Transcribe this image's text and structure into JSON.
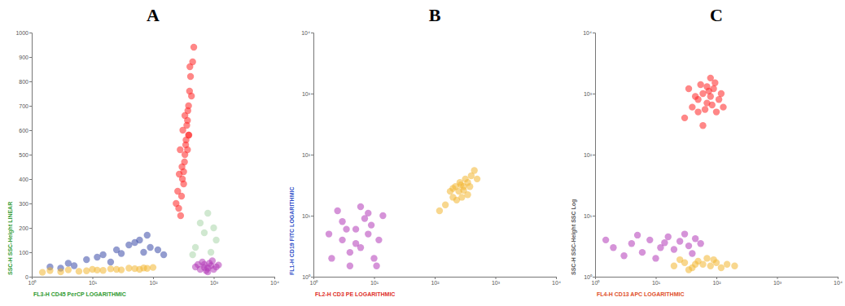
{
  "chart_data": [
    {
      "type": "scatter",
      "title": "A",
      "x_label": "FL3-H CD45 PerCP LOGARITHMIC",
      "y_label": "SSC-H SSC-Height LINEAR",
      "log": "x",
      "grid": false,
      "marker": "circle",
      "xlim": [
        1,
        10000
      ],
      "xticks": [
        {
          "value": 1,
          "label": "10⁰"
        },
        {
          "value": 10,
          "label": "10¹"
        },
        {
          "value": 100,
          "label": "10²"
        },
        {
          "value": 1000,
          "label": "10³"
        },
        {
          "value": 10000,
          "label": "10⁴"
        }
      ],
      "ylim": [
        0,
        1000
      ],
      "yticks": [
        0,
        100,
        200,
        300,
        400,
        500,
        600,
        700,
        800,
        900,
        1000
      ],
      "series": [
        {
          "color": "#3a4aa8",
          "x": [
            2,
            4,
            8,
            15,
            25,
            40,
            60,
            90,
            5,
            12,
            30,
            50,
            80,
            120,
            3,
            20,
            70,
            150
          ],
          "values": [
            40,
            55,
            70,
            90,
            110,
            130,
            150,
            120,
            45,
            80,
            95,
            140,
            170,
            110,
            35,
            60,
            100,
            90
          ]
        },
        {
          "color": "#f2b632",
          "x": [
            2,
            4,
            6,
            10,
            15,
            20,
            30,
            40,
            60,
            80,
            100,
            3,
            8,
            25,
            50,
            1.5,
            12,
            70
          ],
          "values": [
            25,
            28,
            22,
            30,
            26,
            32,
            28,
            35,
            30,
            34,
            38,
            20,
            24,
            30,
            33,
            18,
            27,
            36
          ]
        },
        {
          "color": "#a9d6a9",
          "x": [
            500,
            700,
            900,
            600,
            1100,
            800,
            450,
            1000
          ],
          "values": [
            120,
            180,
            100,
            220,
            150,
            260,
            90,
            200
          ]
        },
        {
          "color": "#ff2424",
          "x": [
            240,
            255,
            285,
            270,
            320,
            300,
            335,
            280,
            350,
            310,
            370,
            330,
            385,
            345,
            400,
            360,
            415,
            375,
            450,
            390,
            430,
            295,
            470,
            405,
            320,
            265,
            370,
            335,
            305,
            385
          ],
          "values": [
            300,
            350,
            250,
            420,
            380,
            450,
            500,
            520,
            560,
            600,
            640,
            470,
            700,
            540,
            760,
            620,
            820,
            680,
            880,
            580,
            740,
            330,
            940,
            860,
            430,
            280,
            520,
            660,
            400,
            580
          ]
        },
        {
          "color": "#b23ab8",
          "x": [
            500,
            600,
            700,
            800,
            900,
            1000,
            650,
            750,
            850,
            1100,
            550,
            950,
            700,
            1200,
            800
          ],
          "values": [
            40,
            30,
            50,
            35,
            45,
            30,
            60,
            25,
            55,
            40,
            50,
            65,
            38,
            48,
            20
          ]
        }
      ]
    },
    {
      "type": "scatter",
      "title": "B",
      "x_label": "FL2-H CD3 PE LOGARITHMIC",
      "y_label": "FL1-H CD19 FITC LOGARITHMIC",
      "log": true,
      "grid": false,
      "marker": "circle",
      "xlim": [
        1,
        10000
      ],
      "xticks": [
        {
          "value": 1,
          "label": "10⁰"
        },
        {
          "value": 10,
          "label": "10¹"
        },
        {
          "value": 100,
          "label": "10²"
        },
        {
          "value": 1000,
          "label": "10³"
        },
        {
          "value": 10000,
          "label": "10⁴"
        }
      ],
      "ylim": [
        1,
        10000
      ],
      "yticks": [
        {
          "value": 1,
          "label": "10⁰"
        },
        {
          "value": 10,
          "label": "10¹"
        },
        {
          "value": 100,
          "label": "10²"
        },
        {
          "value": 1000,
          "label": "10³"
        },
        {
          "value": 10000,
          "label": "10⁴"
        }
      ],
      "series": [
        {
          "color": "#b23ab8",
          "x": [
            2,
            3,
            4,
            5,
            6,
            8,
            10,
            3,
            7,
            12,
            2.5,
            4,
            9,
            5,
            14,
            1.8,
            6,
            11,
            3.5,
            8
          ],
          "values": [
            2,
            4,
            2.5,
            6,
            3,
            5,
            2,
            8,
            9,
            4,
            12,
            1.5,
            7,
            3.5,
            10,
            5,
            14,
            1.5,
            6,
            11
          ]
        },
        {
          "color": "#f2b632",
          "x": [
            150,
            200,
            250,
            300,
            350,
            180,
            220,
            280,
            320,
            400,
            260,
            230,
            350,
            450,
            120,
            300,
            200,
            270,
            380,
            500
          ],
          "values": [
            15,
            20,
            25,
            30,
            35,
            25,
            30,
            20,
            40,
            45,
            35,
            18,
            22,
            55,
            12,
            26,
            28,
            32,
            30,
            40
          ]
        }
      ]
    },
    {
      "type": "scatter",
      "title": "C",
      "x_label": "FL4-H CD13 APC LOGARITHMIC",
      "y_label": "SSC-H SSC-Height SSC Log",
      "log": true,
      "grid": false,
      "marker": "circle",
      "xlim": [
        1,
        10000
      ],
      "xticks": [
        {
          "value": 1,
          "label": "10⁰"
        },
        {
          "value": 10,
          "label": "10¹"
        },
        {
          "value": 100,
          "label": "10²"
        },
        {
          "value": 1000,
          "label": "10³"
        },
        {
          "value": 10000,
          "label": "10⁴"
        }
      ],
      "ylim": [
        1,
        10000
      ],
      "yticks": [
        {
          "value": 1,
          "label": "10⁰"
        },
        {
          "value": 10,
          "label": "10¹"
        },
        {
          "value": 100,
          "label": "10²"
        },
        {
          "value": 1000,
          "label": "10³"
        },
        {
          "value": 10000,
          "label": "10⁴"
        }
      ],
      "series": [
        {
          "color": "#ff2424",
          "x": [
            30,
            40,
            50,
            60,
            70,
            80,
            90,
            100,
            55,
            65,
            75,
            85,
            45,
            110,
            120,
            35,
            95,
            60,
            80,
            130,
            50,
            70
          ],
          "values": [
            400,
            600,
            800,
            1000,
            700,
            900,
            1200,
            500,
            1400,
            550,
            1100,
            650,
            900,
            800,
            1000,
            1200,
            1500,
            300,
            1800,
            600,
            500,
            1300
          ]
        },
        {
          "color": "#b23ab8",
          "x": [
            2,
            4,
            6,
            8,
            12,
            16,
            20,
            25,
            35,
            45,
            3,
            10,
            30,
            55,
            1.5,
            14,
            5,
            40
          ],
          "values": [
            3,
            3.5,
            2.5,
            4,
            3,
            4.5,
            2.8,
            3.8,
            3.2,
            4.2,
            2.2,
            2,
            5,
            3.5,
            4,
            3.6,
            4.8,
            2.4
          ]
        },
        {
          "color": "#f2b632",
          "x": [
            20,
            30,
            40,
            50,
            60,
            80,
            100,
            120,
            150,
            70,
            35,
            90,
            200,
            25,
            45
          ],
          "values": [
            1.5,
            1.7,
            1.4,
            1.8,
            1.6,
            1.5,
            1.7,
            1.4,
            1.6,
            2,
            1.3,
            1.9,
            1.5,
            1.9,
            1.6
          ]
        }
      ]
    }
  ]
}
